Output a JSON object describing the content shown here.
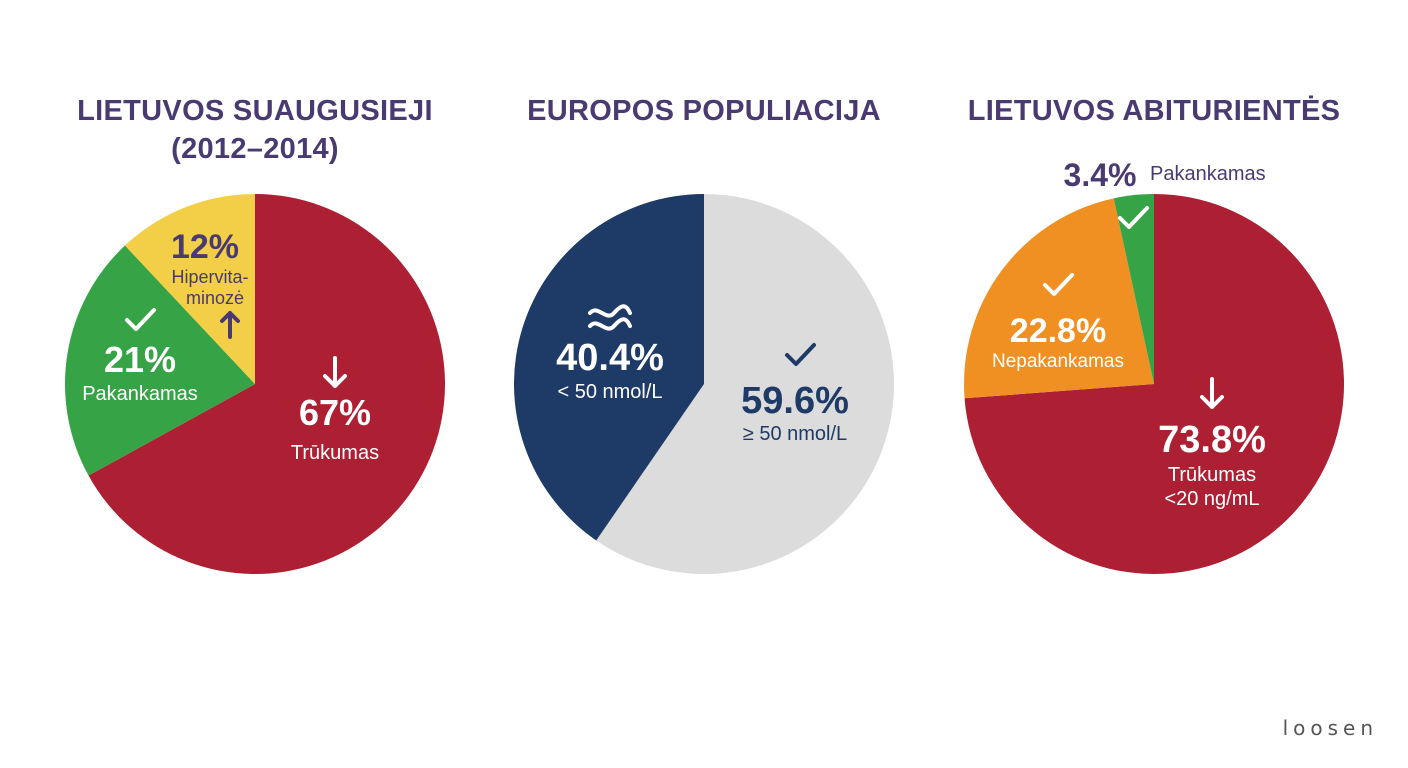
{
  "brand": "loosen",
  "chart_data": [
    {
      "type": "pie",
      "title": "LIETUVOS SUAUGUSIEJI (2012–2014)",
      "title_lines": [
        "LIETUVOS SUAUGUSIEJI",
        "(2012–2014)"
      ],
      "start": "12 o'clock, clockwise",
      "slices": [
        {
          "pct": "67%",
          "value": 67,
          "label": "Trūkumas",
          "color": "#ad1f33",
          "icon": "arrow-down-icon"
        },
        {
          "pct": "21%",
          "value": 21,
          "label": "Pakankamas",
          "color": "#36a347",
          "icon": "check-icon"
        },
        {
          "pct": "12%",
          "value": 12,
          "label": "Hipervita-minozė",
          "label_lines": [
            "Hipervita-",
            "minozė"
          ],
          "color": "#f2cf46",
          "icon": "arrow-up-icon"
        }
      ]
    },
    {
      "type": "pie",
      "title": "EUROPOS POPULIACIJA",
      "title_lines": [
        "EUROPOS POPULIACIJA"
      ],
      "start": "12 o'clock, clockwise",
      "slices": [
        {
          "pct": "59.6%",
          "value": 59.6,
          "label": "≥ 50 nmol/L",
          "color": "#dcdcdc",
          "icon": "check-icon"
        },
        {
          "pct": "40.4%",
          "value": 40.4,
          "label": "< 50 nmol/L",
          "color": "#1e3a66",
          "icon": "approx-icon"
        }
      ]
    },
    {
      "type": "pie",
      "title": "LIETUVOS ABITURIENTĖS",
      "title_lines": [
        "LIETUVOS ABITURIENTĖS"
      ],
      "start": "12 o'clock, clockwise",
      "slices": [
        {
          "pct": "73.8%",
          "value": 73.8,
          "label": "Trūkumas <20 ng/mL",
          "label_lines": [
            "Trūkumas",
            "<20 ng/mL"
          ],
          "color": "#ad1f33",
          "icon": "arrow-down-icon"
        },
        {
          "pct": "22.8%",
          "value": 22.8,
          "label": "Nepakankamas",
          "color": "#f09022",
          "icon": "check-icon"
        },
        {
          "pct": "3.4%",
          "value": 3.4,
          "label": "Pakankamas",
          "color": "#36a347",
          "icon": "check-icon"
        }
      ]
    }
  ]
}
